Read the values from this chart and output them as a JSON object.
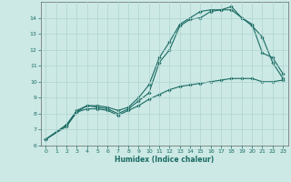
{
  "title": "",
  "xlabel": "Humidex (Indice chaleur)",
  "ylabel": "",
  "xlim": [
    -0.5,
    23.5
  ],
  "ylim": [
    6,
    15
  ],
  "bg_color": "#cce9e5",
  "line_color": "#1a6b63",
  "grid_color": "#afd4d0",
  "line1_x": [
    0,
    2,
    3,
    4,
    5,
    6,
    7,
    8,
    9,
    10,
    11,
    12,
    13,
    14,
    15,
    16,
    17,
    18,
    19,
    20,
    21,
    22,
    23
  ],
  "line1_y": [
    6.4,
    7.3,
    8.1,
    8.5,
    8.4,
    8.3,
    8.0,
    8.3,
    8.8,
    9.3,
    11.2,
    12.0,
    13.5,
    13.9,
    14.0,
    14.4,
    14.5,
    14.5,
    14.0,
    13.5,
    12.8,
    11.2,
    10.2
  ],
  "line2_x": [
    0,
    2,
    3,
    4,
    5,
    6,
    7,
    8,
    9,
    10,
    11,
    12,
    13,
    14,
    15,
    16,
    17,
    18,
    19,
    20,
    21,
    22,
    23
  ],
  "line2_y": [
    6.4,
    7.3,
    8.2,
    8.5,
    8.5,
    8.4,
    8.2,
    8.4,
    9.0,
    9.8,
    11.5,
    12.5,
    13.6,
    14.0,
    14.4,
    14.5,
    14.5,
    14.7,
    14.0,
    13.6,
    11.8,
    11.5,
    10.5
  ],
  "line3_x": [
    0,
    2,
    3,
    4,
    5,
    6,
    7,
    8,
    9,
    10,
    11,
    12,
    13,
    14,
    15,
    16,
    17,
    18,
    19,
    20,
    21,
    22,
    23
  ],
  "line3_y": [
    6.4,
    7.2,
    8.1,
    8.3,
    8.3,
    8.2,
    7.9,
    8.2,
    8.5,
    8.9,
    9.2,
    9.5,
    9.7,
    9.8,
    9.9,
    10.0,
    10.1,
    10.2,
    10.2,
    10.2,
    10.0,
    10.0,
    10.1
  ],
  "xticks": [
    0,
    1,
    2,
    3,
    4,
    5,
    6,
    7,
    8,
    9,
    10,
    11,
    12,
    13,
    14,
    15,
    16,
    17,
    18,
    19,
    20,
    21,
    22,
    23
  ],
  "yticks": [
    6,
    7,
    8,
    9,
    10,
    11,
    12,
    13,
    14
  ],
  "marker": "D",
  "markersize": 1.8,
  "linewidth": 0.8,
  "xlabel_fontsize": 5.5,
  "tick_fontsize": 4.5
}
